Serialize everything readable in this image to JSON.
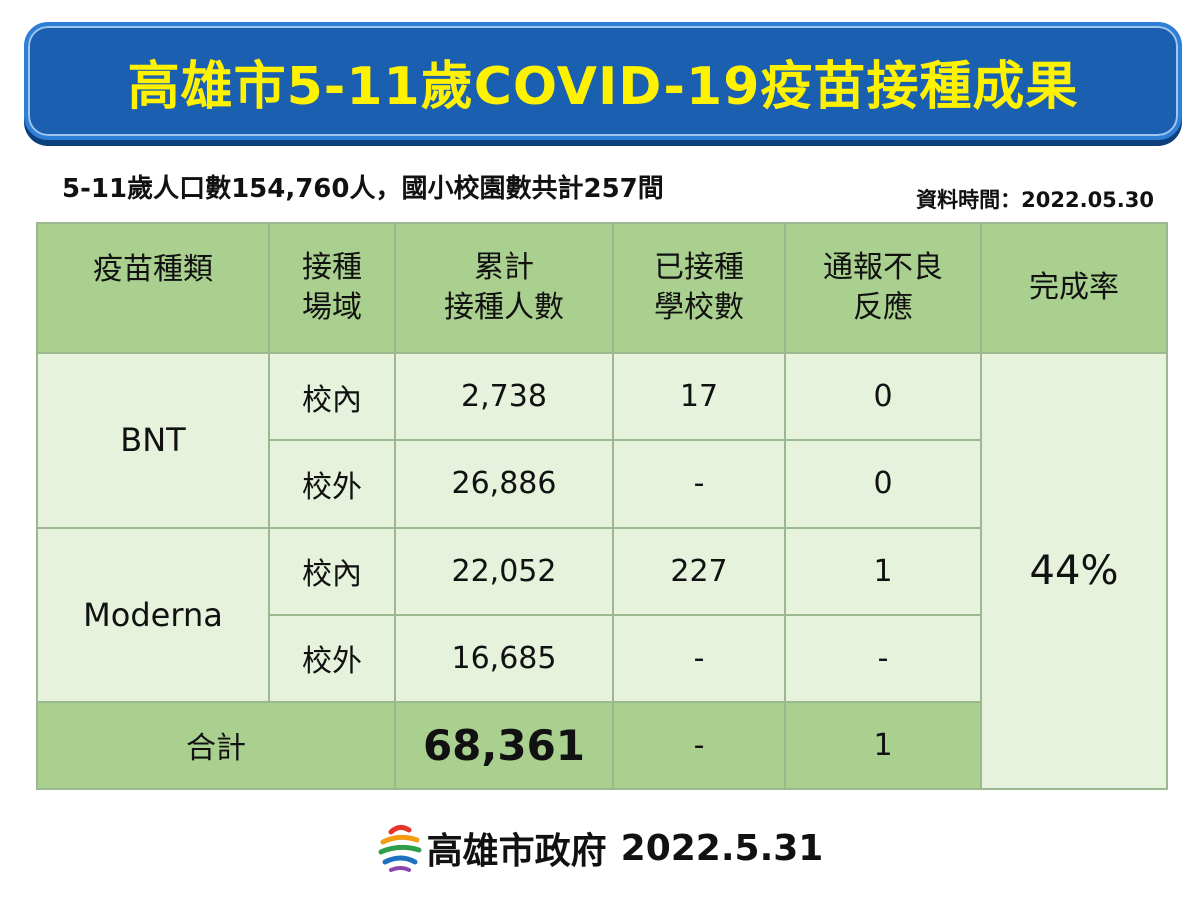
{
  "title": "高雄市5-11歲COVID-19疫苗接種成果",
  "subtitle": "5-11歲人口數154,760人，國小校園數共計257間",
  "data_time": "資料時間：2022.05.30",
  "table": {
    "headers": {
      "vaccine_type": "疫苗種類",
      "site": [
        "接種",
        "場域"
      ],
      "cumulative": [
        "累計",
        "接種人數"
      ],
      "schools": [
        "已接種",
        "學校數"
      ],
      "adverse": [
        "通報不良",
        "反應"
      ],
      "rate": "完成率"
    },
    "rows": [
      {
        "vaccine": "BNT",
        "site": "校內",
        "cumulative": "2,738",
        "schools": "17",
        "adverse": "0"
      },
      {
        "vaccine": "BNT",
        "site": "校外",
        "cumulative": "26,886",
        "schools": "-",
        "adverse": "0"
      },
      {
        "vaccine": "Moderna",
        "site": "校內",
        "cumulative": "22,052",
        "schools": "227",
        "adverse": "1"
      },
      {
        "vaccine": "Moderna",
        "site": "校外",
        "cumulative": "16,685",
        "schools": "-",
        "adverse": "-"
      }
    ],
    "vaccines": [
      "BNT",
      "Moderna"
    ],
    "total": {
      "label": "合計",
      "cumulative": "68,361",
      "schools": "-",
      "adverse": "1"
    },
    "completion_rate": "44%"
  },
  "footer": {
    "name": "高雄市政府",
    "date": "2022.5.31",
    "logo_icon": "kaohsiung-city-logo-icon"
  },
  "colors": {
    "banner_bg": "#1a5fb0",
    "banner_text": "#fff200",
    "header_green": "#a9d08e",
    "cell_green": "#e6f2dc",
    "border": "#9cb890"
  }
}
